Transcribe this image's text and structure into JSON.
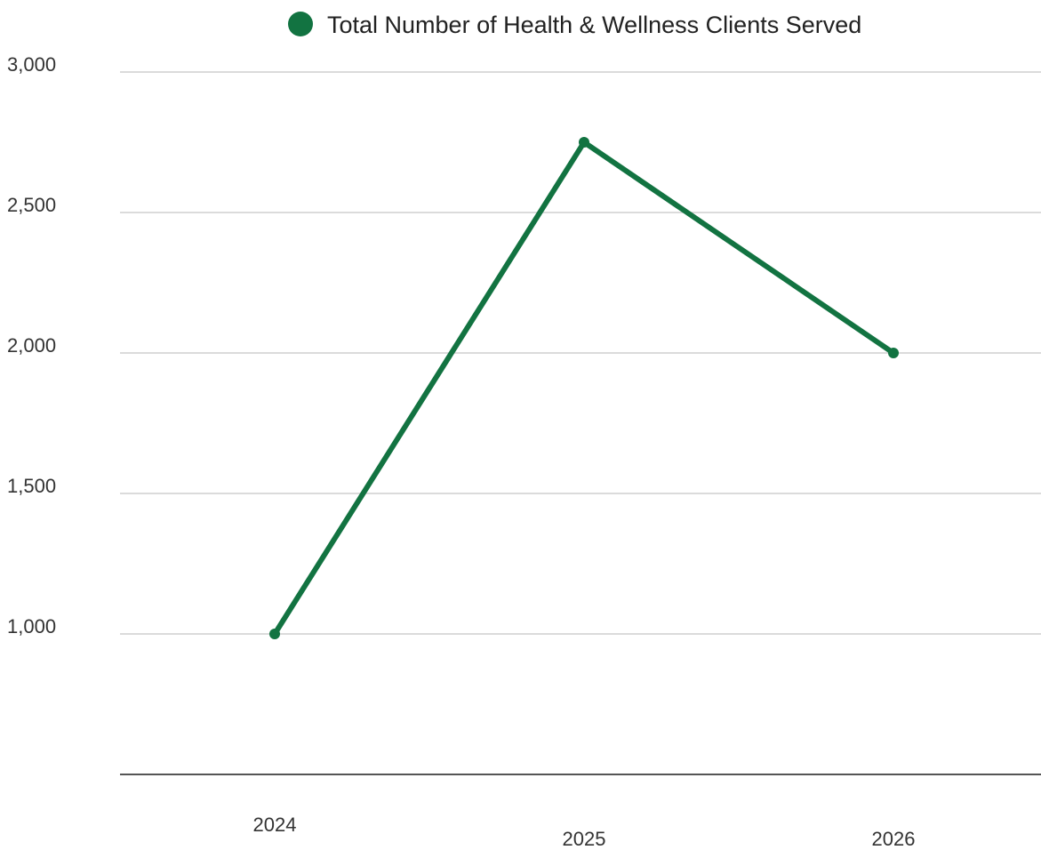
{
  "chart_data": {
    "type": "line",
    "categories": [
      "2024",
      "2025",
      "2026"
    ],
    "series": [
      {
        "name": "Total Number of Health & Wellness Clients Served",
        "values": [
          1000,
          2750,
          2000
        ],
        "color": "#127341"
      }
    ],
    "ylim": [
      500,
      3000
    ],
    "yticks": [
      1000,
      1500,
      2000,
      2500,
      3000
    ],
    "ytick_labels": [
      "1,000",
      "1,500",
      "2,000",
      "2,500",
      "3,000"
    ],
    "legend": {
      "placement": "top-center"
    },
    "grid": true,
    "colors": {
      "line": "#127341",
      "grid": "#cfcfcf",
      "axis": "#555555"
    }
  }
}
